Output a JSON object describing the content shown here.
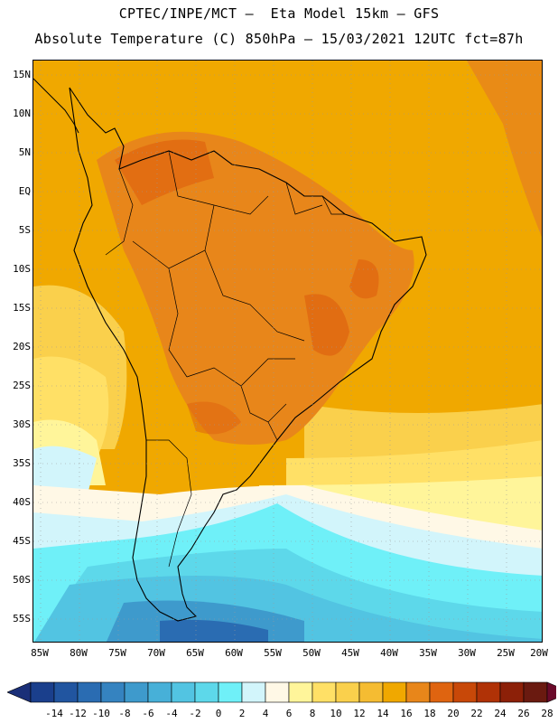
{
  "header": {
    "title_line1": "CPTEC/INPE/MCT –  Eta Model 15km – GFS",
    "title_line2": "Absolute Temperature (C) 850hPa – 15/03/2021 12UTC fct=87h"
  },
  "map": {
    "region": "South America",
    "lat_labels": [
      "15N",
      "10N",
      "5N",
      "EQ",
      "5S",
      "10S",
      "15S",
      "20S",
      "25S",
      "30S",
      "35S",
      "40S",
      "45S",
      "50S",
      "55S"
    ],
    "lon_labels": [
      "85W",
      "80W",
      "75W",
      "70W",
      "65W",
      "60W",
      "55W",
      "50W",
      "45W",
      "40W",
      "35W",
      "30W",
      "25W",
      "20W"
    ]
  },
  "colorbar": {
    "labels": [
      "-14",
      "-12",
      "-10",
      "-8",
      "-6",
      "-4",
      "-2",
      "0",
      "2",
      "4",
      "6",
      "8",
      "10",
      "12",
      "14",
      "16",
      "18",
      "20",
      "22",
      "24",
      "26",
      "28"
    ],
    "colors": [
      "#1a3f8c",
      "#2155a0",
      "#2a6cb2",
      "#3583c0",
      "#3e9acc",
      "#47b0d8",
      "#52c4e2",
      "#5dd8ea",
      "#6ff0f8",
      "#d2f5fb",
      "#fff8e6",
      "#fff59a",
      "#ffe066",
      "#fad04c",
      "#f5bc32",
      "#f0a800",
      "#e8861a",
      "#df6410",
      "#c84808",
      "#b03206",
      "#8c2008",
      "#6a1a10"
    ],
    "under_color": "#1a2f78",
    "over_color": "#6a0a2a"
  }
}
